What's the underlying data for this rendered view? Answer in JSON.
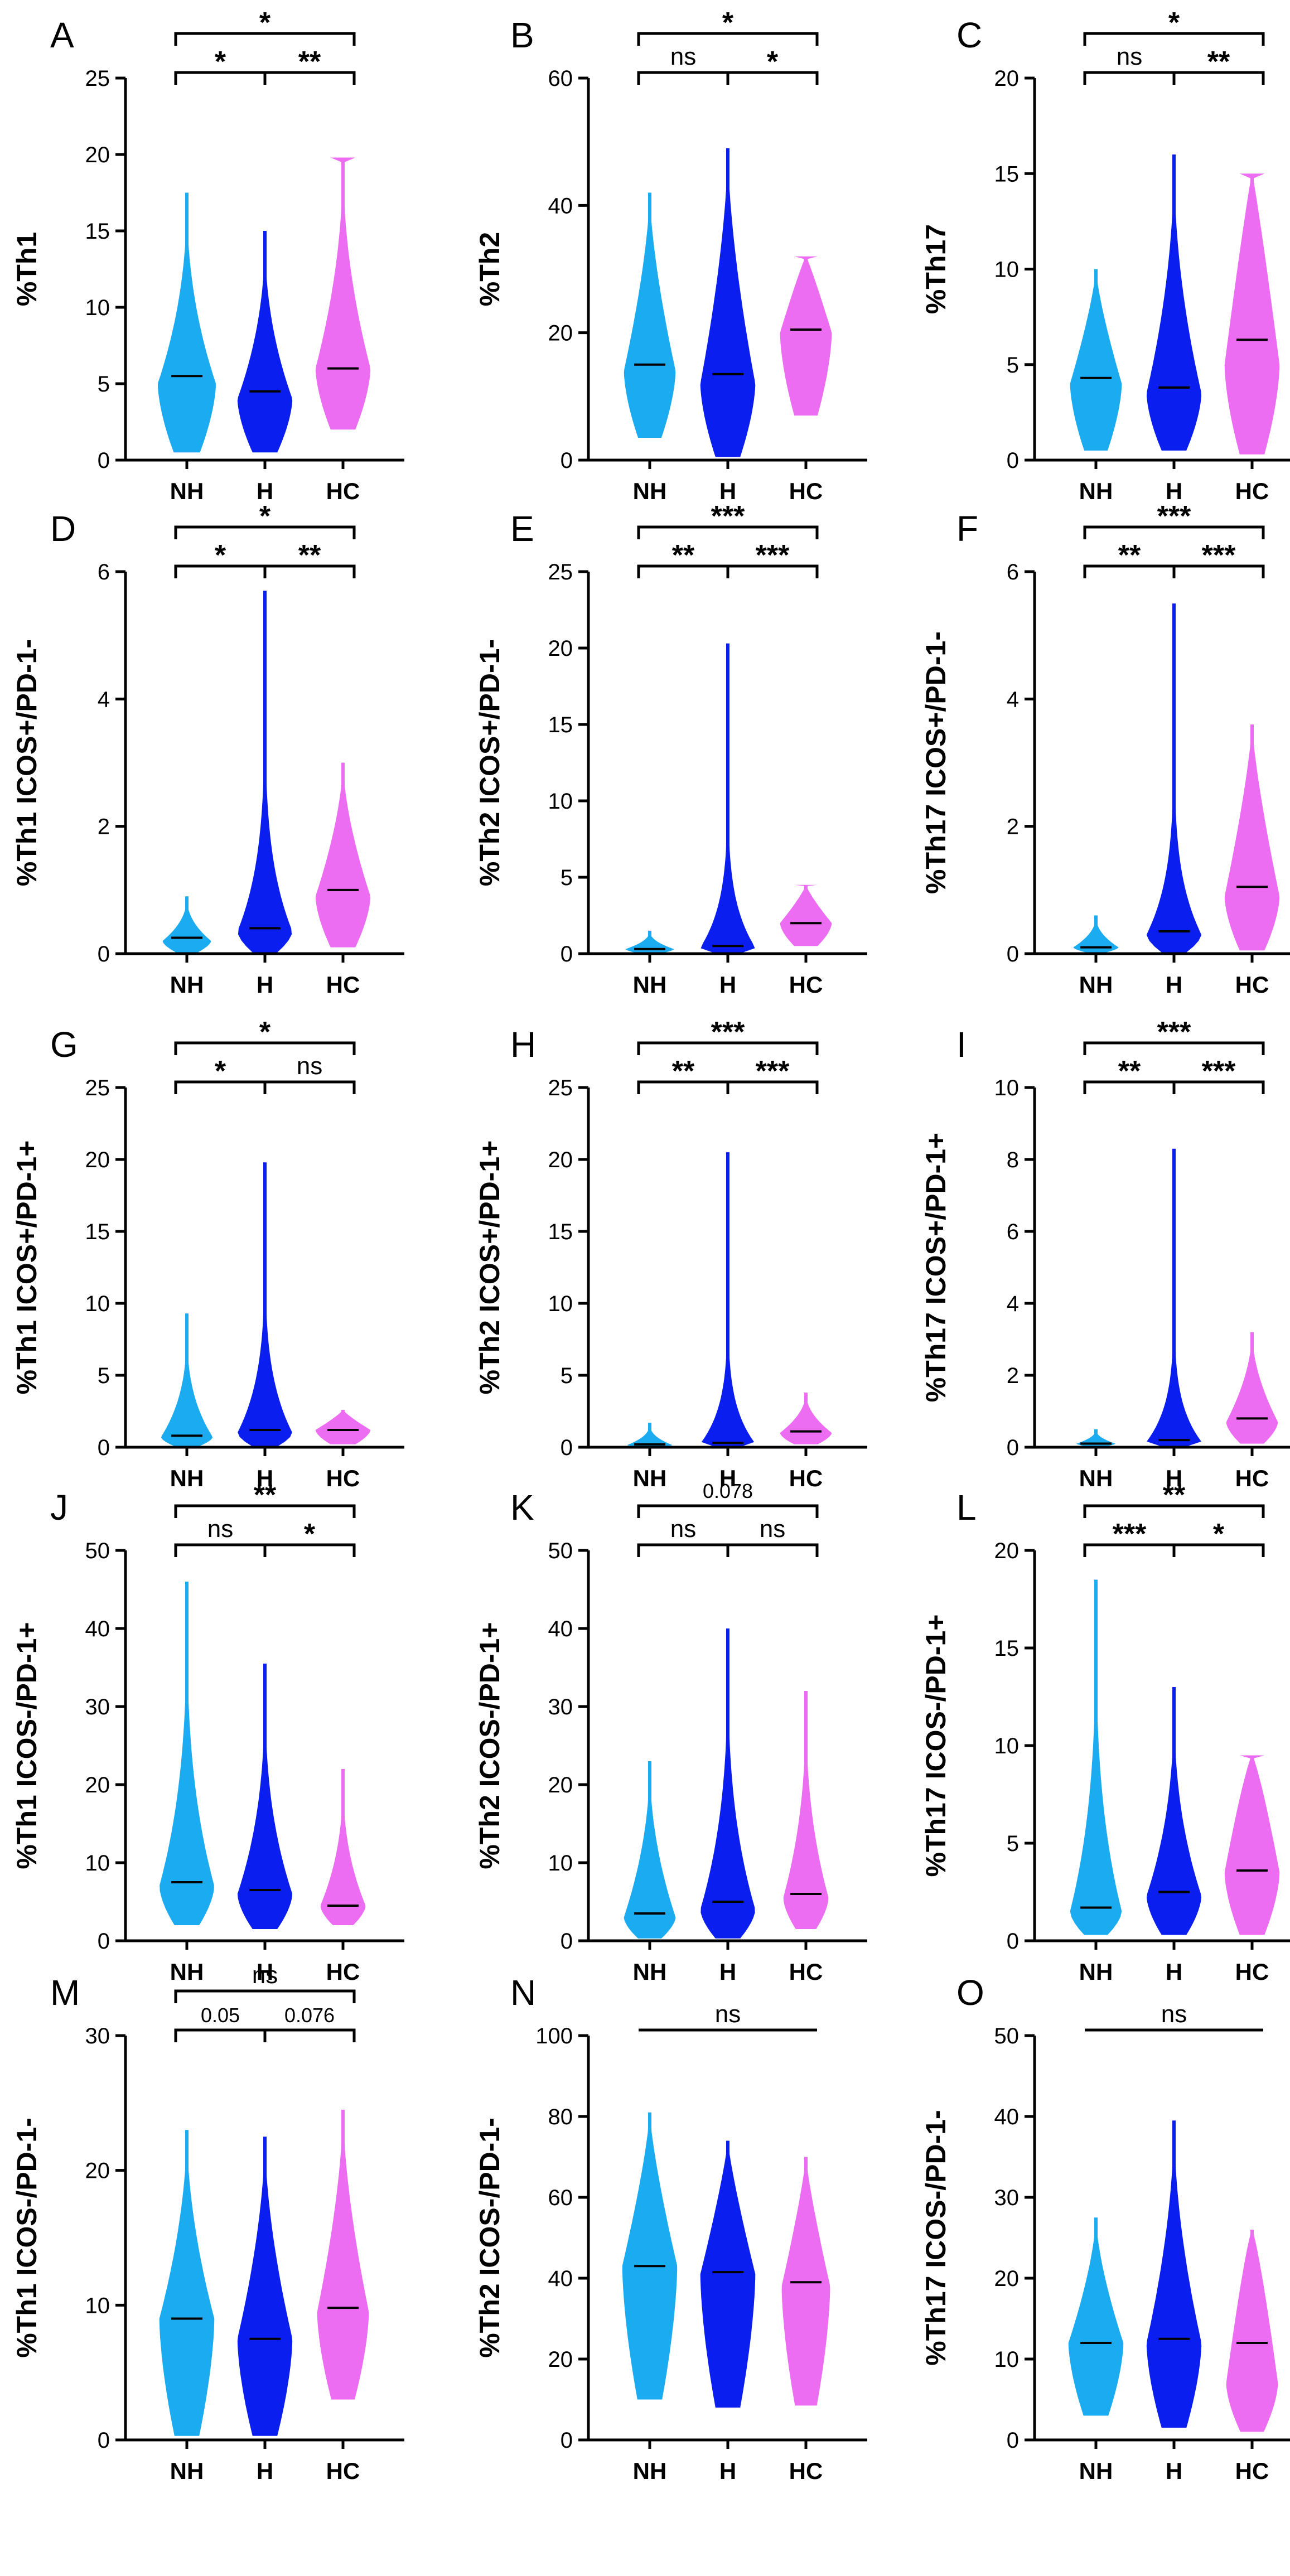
{
  "colors": {
    "NH": "#1AABF0",
    "H": "#0A1EF0",
    "HC": "#EC6CF2"
  },
  "chart_data": [
    {
      "panel": "A",
      "type": "violin",
      "ylabel": "%Th1",
      "ylim": [
        0,
        25
      ],
      "yticks": [
        "0",
        "5",
        "10",
        "15",
        "20",
        "25"
      ],
      "categories": [
        "NH",
        "H",
        "HC"
      ],
      "series": [
        {
          "name": "NH",
          "min": 0.5,
          "max": 17.5,
          "median": 5.5,
          "mode": 5.0,
          "width": 0.9,
          "taper": 2.2
        },
        {
          "name": "H",
          "min": 0.5,
          "max": 15.0,
          "median": 4.5,
          "mode": 4.0,
          "width": 0.85,
          "taper": 2.2
        },
        {
          "name": "HC",
          "min": 2.0,
          "max": 19.8,
          "median": 6.0,
          "mode": 6.0,
          "width": 0.85,
          "taper": 2.0,
          "topcap": 19.8
        }
      ],
      "brackets": [
        {
          "from": 0,
          "to": 1,
          "level": 1,
          "label": "*"
        },
        {
          "from": 1,
          "to": 2,
          "level": 1,
          "label": "**"
        },
        {
          "from": 0,
          "to": 2,
          "level": 2,
          "label": "*"
        }
      ]
    },
    {
      "panel": "B",
      "type": "violin",
      "ylabel": "%Th2",
      "ylim": [
        0,
        60
      ],
      "yticks": [
        "0",
        "20",
        "40",
        "60"
      ],
      "categories": [
        "NH",
        "H",
        "HC"
      ],
      "series": [
        {
          "name": "NH",
          "min": 3.5,
          "max": 42.0,
          "median": 15.0,
          "mode": 14.0,
          "width": 0.8,
          "taper": 1.5
        },
        {
          "name": "H",
          "min": 0.5,
          "max": 49.0,
          "median": 13.5,
          "mode": 12.0,
          "width": 0.85,
          "taper": 1.6
        },
        {
          "name": "HC",
          "min": 7.0,
          "max": 32.0,
          "median": 20.5,
          "mode": 20.0,
          "width": 0.8,
          "taper": 0.9,
          "topcap": 32.0
        }
      ],
      "brackets": [
        {
          "from": 0,
          "to": 1,
          "level": 1,
          "label": "ns"
        },
        {
          "from": 1,
          "to": 2,
          "level": 1,
          "label": "*"
        },
        {
          "from": 0,
          "to": 2,
          "level": 2,
          "label": "*"
        }
      ]
    },
    {
      "panel": "C",
      "type": "violin",
      "ylabel": "%Th17",
      "ylim": [
        0,
        20
      ],
      "yticks": [
        "0",
        "5",
        "10",
        "15",
        "20"
      ],
      "categories": [
        "NH",
        "H",
        "HC"
      ],
      "series": [
        {
          "name": "NH",
          "min": 0.5,
          "max": 10.0,
          "median": 4.3,
          "mode": 4.0,
          "width": 0.8,
          "taper": 1.3
        },
        {
          "name": "H",
          "min": 0.5,
          "max": 16.0,
          "median": 3.8,
          "mode": 3.5,
          "width": 0.85,
          "taper": 2.0
        },
        {
          "name": "HC",
          "min": 0.3,
          "max": 15.0,
          "median": 6.3,
          "mode": 5.0,
          "width": 0.85,
          "taper": 0.9,
          "topcap": 15.0
        }
      ],
      "brackets": [
        {
          "from": 0,
          "to": 1,
          "level": 1,
          "label": "ns"
        },
        {
          "from": 1,
          "to": 2,
          "level": 1,
          "label": "**"
        },
        {
          "from": 0,
          "to": 2,
          "level": 2,
          "label": "*"
        }
      ]
    },
    {
      "panel": "D",
      "type": "violin",
      "ylabel": "%Th1 ICOS+/PD-1-",
      "ylim": [
        0,
        6
      ],
      "yticks": [
        "0",
        "2",
        "4",
        "6"
      ],
      "categories": [
        "NH",
        "H",
        "HC"
      ],
      "series": [
        {
          "name": "NH",
          "min": 0.02,
          "max": 0.9,
          "median": 0.25,
          "mode": 0.2,
          "width": 0.75,
          "taper": 2.2
        },
        {
          "name": "H",
          "min": 0.02,
          "max": 5.7,
          "median": 0.4,
          "mode": 0.35,
          "width": 0.85,
          "taper": 5.0
        },
        {
          "name": "HC",
          "min": 0.1,
          "max": 3.0,
          "median": 1.0,
          "mode": 0.9,
          "width": 0.85,
          "taper": 1.6
        }
      ],
      "brackets": [
        {
          "from": 0,
          "to": 1,
          "level": 1,
          "label": "*"
        },
        {
          "from": 1,
          "to": 2,
          "level": 1,
          "label": "**"
        },
        {
          "from": 0,
          "to": 2,
          "level": 2,
          "label": "*"
        }
      ]
    },
    {
      "panel": "E",
      "type": "violin",
      "ylabel": "%Th2 ICOS+/PD-1-",
      "ylim": [
        0,
        25
      ],
      "yticks": [
        "0",
        "5",
        "10",
        "15",
        "20",
        "25"
      ],
      "categories": [
        "NH",
        "H",
        "HC"
      ],
      "series": [
        {
          "name": "NH",
          "min": 0.02,
          "max": 1.5,
          "median": 0.3,
          "mode": 0.3,
          "width": 0.75,
          "taper": 2.2
        },
        {
          "name": "H",
          "min": 0.02,
          "max": 20.3,
          "median": 0.5,
          "mode": 0.4,
          "width": 0.85,
          "taper": 7.0
        },
        {
          "name": "HC",
          "min": 0.5,
          "max": 4.5,
          "median": 2.0,
          "mode": 2.0,
          "width": 0.8,
          "taper": 1.2,
          "topcap": 4.5
        }
      ],
      "brackets": [
        {
          "from": 0,
          "to": 1,
          "level": 1,
          "label": "**"
        },
        {
          "from": 1,
          "to": 2,
          "level": 1,
          "label": "***"
        },
        {
          "from": 0,
          "to": 2,
          "level": 2,
          "label": "***"
        }
      ]
    },
    {
      "panel": "F",
      "type": "violin",
      "ylabel": "%Th17 ICOS+/PD-1-",
      "ylim": [
        0,
        6
      ],
      "yticks": [
        "0",
        "2",
        "4",
        "6"
      ],
      "categories": [
        "NH",
        "H",
        "HC"
      ],
      "series": [
        {
          "name": "NH",
          "min": 0.02,
          "max": 0.6,
          "median": 0.1,
          "mode": 0.1,
          "width": 0.7,
          "taper": 2.2
        },
        {
          "name": "H",
          "min": 0.02,
          "max": 5.5,
          "median": 0.35,
          "mode": 0.3,
          "width": 0.85,
          "taper": 6.0
        },
        {
          "name": "HC",
          "min": 0.05,
          "max": 3.6,
          "median": 1.05,
          "mode": 0.9,
          "width": 0.85,
          "taper": 1.3
        }
      ],
      "brackets": [
        {
          "from": 0,
          "to": 1,
          "level": 1,
          "label": "**"
        },
        {
          "from": 1,
          "to": 2,
          "level": 1,
          "label": "***"
        },
        {
          "from": 0,
          "to": 2,
          "level": 2,
          "label": "***"
        }
      ]
    },
    {
      "panel": "G",
      "type": "violin",
      "ylabel": "%Th1 ICOS+/PD-1+",
      "ylim": [
        0,
        25
      ],
      "yticks": [
        "0",
        "5",
        "10",
        "15",
        "20",
        "25"
      ],
      "categories": [
        "NH",
        "H",
        "HC"
      ],
      "series": [
        {
          "name": "NH",
          "min": 0.05,
          "max": 9.3,
          "median": 0.8,
          "mode": 0.7,
          "width": 0.8,
          "taper": 3.0
        },
        {
          "name": "H",
          "min": 0.05,
          "max": 19.8,
          "median": 1.2,
          "mode": 1.0,
          "width": 0.85,
          "taper": 5.0
        },
        {
          "name": "HC",
          "min": 0.2,
          "max": 2.6,
          "median": 1.2,
          "mode": 1.2,
          "width": 0.85,
          "taper": 1.2
        }
      ],
      "brackets": [
        {
          "from": 0,
          "to": 1,
          "level": 1,
          "label": "*"
        },
        {
          "from": 1,
          "to": 2,
          "level": 1,
          "label": "ns"
        },
        {
          "from": 0,
          "to": 2,
          "level": 2,
          "label": "*"
        }
      ]
    },
    {
      "panel": "H",
      "type": "violin",
      "ylabel": "%Th2 ICOS+/PD-1+",
      "ylim": [
        0,
        25
      ],
      "yticks": [
        "0",
        "5",
        "10",
        "15",
        "20",
        "25"
      ],
      "categories": [
        "NH",
        "H",
        "HC"
      ],
      "series": [
        {
          "name": "NH",
          "min": 0.02,
          "max": 1.7,
          "median": 0.2,
          "mode": 0.15,
          "width": 0.7,
          "taper": 2.5
        },
        {
          "name": "H",
          "min": 0.02,
          "max": 20.5,
          "median": 0.3,
          "mode": 0.25,
          "width": 0.85,
          "taper": 8.0
        },
        {
          "name": "HC",
          "min": 0.2,
          "max": 3.8,
          "median": 1.1,
          "mode": 1.0,
          "width": 0.8,
          "taper": 2.0
        }
      ],
      "brackets": [
        {
          "from": 0,
          "to": 1,
          "level": 1,
          "label": "**"
        },
        {
          "from": 1,
          "to": 2,
          "level": 1,
          "label": "***"
        },
        {
          "from": 0,
          "to": 2,
          "level": 2,
          "label": "***"
        }
      ]
    },
    {
      "panel": "I",
      "type": "violin",
      "ylabel": "%Th17 ICOS+/PD-1+",
      "ylim": [
        0,
        10
      ],
      "yticks": [
        "0",
        "2",
        "4",
        "6",
        "8",
        "10"
      ],
      "categories": [
        "NH",
        "H",
        "HC"
      ],
      "series": [
        {
          "name": "NH",
          "min": 0.02,
          "max": 0.5,
          "median": 0.1,
          "mode": 0.1,
          "width": 0.6,
          "taper": 2.2
        },
        {
          "name": "H",
          "min": 0.02,
          "max": 8.3,
          "median": 0.2,
          "mode": 0.15,
          "width": 0.85,
          "taper": 8.0
        },
        {
          "name": "HC",
          "min": 0.1,
          "max": 3.2,
          "median": 0.8,
          "mode": 0.7,
          "width": 0.8,
          "taper": 1.8
        }
      ],
      "brackets": [
        {
          "from": 0,
          "to": 1,
          "level": 1,
          "label": "**"
        },
        {
          "from": 1,
          "to": 2,
          "level": 1,
          "label": "***"
        },
        {
          "from": 0,
          "to": 2,
          "level": 2,
          "label": "***"
        }
      ]
    },
    {
      "panel": "J",
      "type": "violin",
      "ylabel": "%Th1 ICOS-/PD-1+",
      "ylim": [
        0,
        50
      ],
      "yticks": [
        "0",
        "10",
        "20",
        "30",
        "40",
        "50"
      ],
      "categories": [
        "NH",
        "H",
        "HC"
      ],
      "series": [
        {
          "name": "NH",
          "min": 2.0,
          "max": 46.0,
          "median": 7.5,
          "mode": 7.0,
          "width": 0.85,
          "taper": 3.0
        },
        {
          "name": "H",
          "min": 1.5,
          "max": 35.5,
          "median": 6.5,
          "mode": 6.0,
          "width": 0.85,
          "taper": 2.8
        },
        {
          "name": "HC",
          "min": 2.0,
          "max": 22.0,
          "median": 4.5,
          "mode": 4.5,
          "width": 0.7,
          "taper": 2.5
        }
      ],
      "brackets": [
        {
          "from": 0,
          "to": 1,
          "level": 1,
          "label": "ns"
        },
        {
          "from": 1,
          "to": 2,
          "level": 1,
          "label": "*"
        },
        {
          "from": 0,
          "to": 2,
          "level": 2,
          "label": "**"
        }
      ]
    },
    {
      "panel": "K",
      "type": "violin",
      "ylabel": "%Th2 ICOS-/PD-1+",
      "ylim": [
        0,
        50
      ],
      "yticks": [
        "0",
        "10",
        "20",
        "30",
        "40",
        "50"
      ],
      "categories": [
        "NH",
        "H",
        "HC"
      ],
      "series": [
        {
          "name": "NH",
          "min": 0.3,
          "max": 23.0,
          "median": 3.5,
          "mode": 3.0,
          "width": 0.8,
          "taper": 2.0
        },
        {
          "name": "H",
          "min": 0.3,
          "max": 40.0,
          "median": 5.0,
          "mode": 4.0,
          "width": 0.85,
          "taper": 3.0
        },
        {
          "name": "HC",
          "min": 1.5,
          "max": 32.0,
          "median": 6.0,
          "mode": 5.5,
          "width": 0.7,
          "taper": 2.5
        }
      ],
      "brackets": [
        {
          "from": 0,
          "to": 1,
          "level": 1,
          "label": "ns"
        },
        {
          "from": 1,
          "to": 2,
          "level": 1,
          "label": "ns"
        },
        {
          "from": 0,
          "to": 2,
          "level": 2,
          "label": "0.078"
        }
      ]
    },
    {
      "panel": "L",
      "type": "violin",
      "ylabel": "%Th17 ICOS-/PD-1+",
      "ylim": [
        0,
        20
      ],
      "yticks": [
        "0",
        "5",
        "10",
        "15",
        "20"
      ],
      "categories": [
        "NH",
        "H",
        "HC"
      ],
      "series": [
        {
          "name": "NH",
          "min": 0.3,
          "max": 18.5,
          "median": 1.7,
          "mode": 1.5,
          "width": 0.8,
          "taper": 3.2
        },
        {
          "name": "H",
          "min": 0.3,
          "max": 13.0,
          "median": 2.5,
          "mode": 2.3,
          "width": 0.85,
          "taper": 2.5
        },
        {
          "name": "HC",
          "min": 0.3,
          "max": 9.5,
          "median": 3.6,
          "mode": 3.5,
          "width": 0.85,
          "taper": 0.8,
          "topcap": 9.5
        }
      ],
      "brackets": [
        {
          "from": 0,
          "to": 1,
          "level": 1,
          "label": "***"
        },
        {
          "from": 1,
          "to": 2,
          "level": 1,
          "label": "*"
        },
        {
          "from": 0,
          "to": 2,
          "level": 2,
          "label": "**"
        }
      ]
    },
    {
      "panel": "M",
      "type": "violin",
      "ylabel": "%Th1 ICOS-/PD-1-",
      "ylim": [
        0,
        30
      ],
      "yticks": [
        "0",
        "10",
        "20",
        "30"
      ],
      "categories": [
        "NH",
        "H",
        "HC"
      ],
      "series": [
        {
          "name": "NH",
          "min": 0.3,
          "max": 23.0,
          "median": 9.0,
          "mode": 9.0,
          "width": 0.85,
          "taper": 1.8
        },
        {
          "name": "H",
          "min": 0.3,
          "max": 22.5,
          "median": 7.5,
          "mode": 7.5,
          "width": 0.85,
          "taper": 1.7
        },
        {
          "name": "HC",
          "min": 3.0,
          "max": 24.5,
          "median": 9.8,
          "mode": 9.5,
          "width": 0.8,
          "taper": 1.6
        }
      ],
      "brackets": [
        {
          "from": 0,
          "to": 1,
          "level": 1,
          "label": "0.05"
        },
        {
          "from": 1,
          "to": 2,
          "level": 1,
          "label": "0.076"
        },
        {
          "from": 0,
          "to": 2,
          "level": 2,
          "label": "ns"
        }
      ]
    },
    {
      "panel": "N",
      "type": "violin",
      "ylabel": "%Th2 ICOS-/PD-1-",
      "ylim": [
        0,
        100
      ],
      "yticks": [
        "0",
        "20",
        "40",
        "60",
        "80",
        "100"
      ],
      "categories": [
        "NH",
        "H",
        "HC"
      ],
      "series": [
        {
          "name": "NH",
          "min": 10.0,
          "max": 81.0,
          "median": 43.0,
          "mode": 43.0,
          "width": 0.85,
          "taper": 1.3
        },
        {
          "name": "H",
          "min": 8.0,
          "max": 74.0,
          "median": 41.5,
          "mode": 41.0,
          "width": 0.85,
          "taper": 1.2
        },
        {
          "name": "HC",
          "min": 8.5,
          "max": 70.0,
          "median": 39.0,
          "mode": 38.0,
          "width": 0.75,
          "taper": 1.2
        }
      ],
      "brackets": [
        {
          "from": 0,
          "to": 2,
          "level": 1,
          "label": "ns",
          "flat": true
        }
      ]
    },
    {
      "panel": "O",
      "type": "violin",
      "ylabel": "%Th17 ICOS-/PD-1-",
      "ylim": [
        0,
        50
      ],
      "yticks": [
        "0",
        "10",
        "20",
        "30",
        "40",
        "50"
      ],
      "categories": [
        "NH",
        "H",
        "HC"
      ],
      "series": [
        {
          "name": "NH",
          "min": 3.0,
          "max": 27.5,
          "median": 12.0,
          "mode": 12.0,
          "width": 0.85,
          "taper": 1.5
        },
        {
          "name": "H",
          "min": 1.5,
          "max": 39.5,
          "median": 12.5,
          "mode": 12.0,
          "width": 0.85,
          "taper": 1.8
        },
        {
          "name": "HC",
          "min": 1.0,
          "max": 26.0,
          "median": 12.0,
          "mode": 7.0,
          "width": 0.8,
          "taper": 0.8
        }
      ],
      "brackets": [
        {
          "from": 0,
          "to": 2,
          "level": 1,
          "label": "ns",
          "flat": true
        }
      ]
    }
  ]
}
